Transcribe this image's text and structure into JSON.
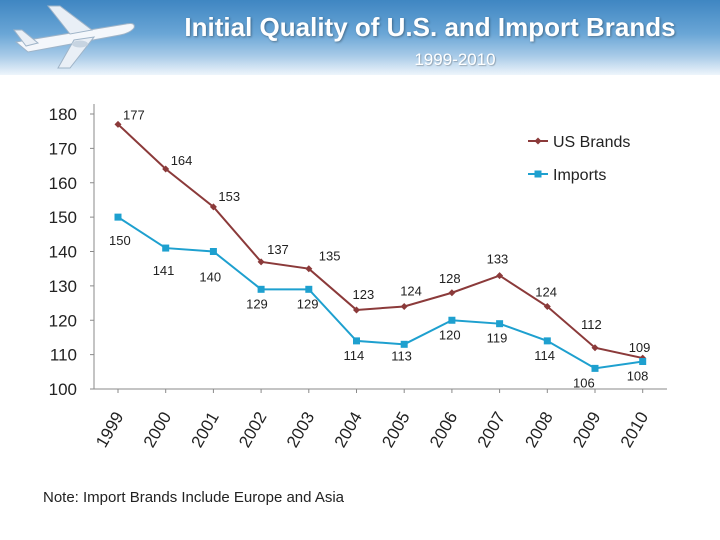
{
  "header": {
    "title": "Initial Quality of U.S. and Import Brands",
    "subtitle": "1999-2010"
  },
  "note": "Note: Import Brands Include Europe and Asia",
  "colors": {
    "us": "#8b3a3a",
    "imports": "#1ea0cf",
    "axis": "#8a8a8a",
    "text": "#222222"
  },
  "chart_data": {
    "type": "line",
    "title": "Initial Quality of U.S. and Import Brands",
    "subtitle": "1999-2010",
    "categories": [
      "1999",
      "2000",
      "2001",
      "2002",
      "2003",
      "2004",
      "2005",
      "2006",
      "2007",
      "2008",
      "2009",
      "2010"
    ],
    "ylim": [
      100,
      180
    ],
    "yticks": [
      100,
      110,
      120,
      130,
      140,
      150,
      160,
      170,
      180
    ],
    "grid": false,
    "legend_position": "top-right",
    "series": [
      {
        "name": "US Brands",
        "marker": "diamond",
        "color": "#8b3a3a",
        "values": [
          177,
          164,
          153,
          137,
          135,
          123,
          124,
          128,
          133,
          124,
          112,
          109
        ]
      },
      {
        "name": "Imports",
        "marker": "square",
        "color": "#1ea0cf",
        "values": [
          150,
          141,
          140,
          129,
          129,
          114,
          113,
          120,
          119,
          114,
          106,
          108
        ]
      }
    ]
  }
}
